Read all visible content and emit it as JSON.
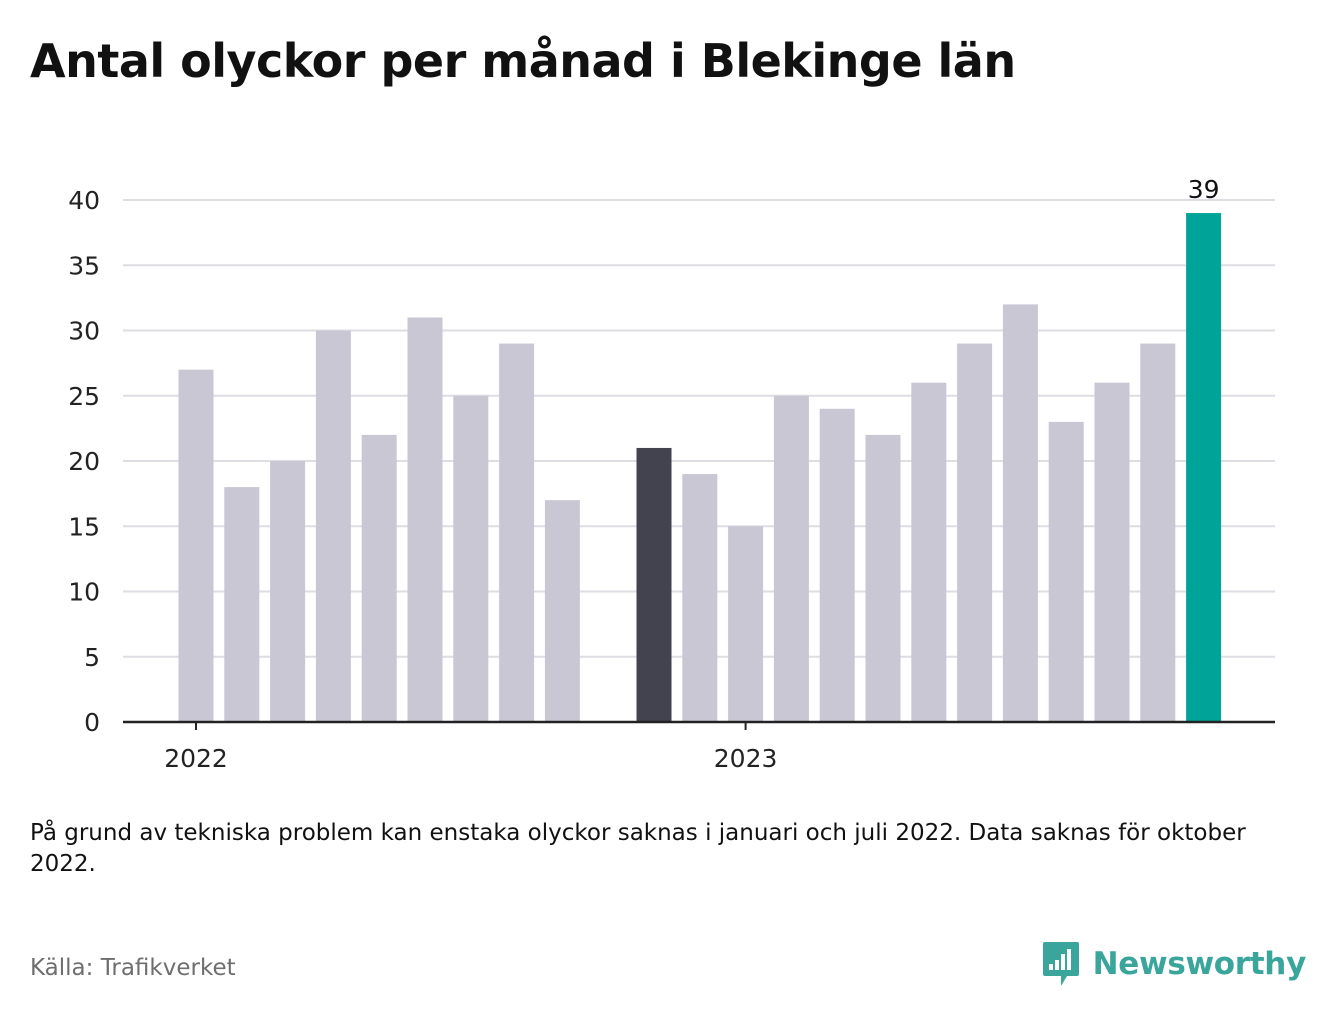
{
  "title": "Antal olyckor per månad i Blekinge län",
  "note": "På grund av tekniska problem kan enstaka olyckor saknas i januari och juli 2022. Data saknas för oktober 2022.",
  "source": "Källa: Trafikverket",
  "brand": {
    "name": "Newsworthy",
    "logo_icon": "bar-chart-speech-bubble-icon"
  },
  "colors": {
    "default_bar": "#c9c7d4",
    "highlight_bar": "#43424f",
    "latest_bar": "#00a398",
    "grid": "#dedde3",
    "axis": "#222222",
    "brand": "#3aa59b"
  },
  "chart_data": {
    "type": "bar",
    "title": "Antal olyckor per månad i Blekinge län",
    "xlabel": "",
    "ylabel": "",
    "ylim": [
      0,
      40
    ],
    "yticks": [
      0,
      5,
      10,
      15,
      20,
      25,
      30,
      35,
      40
    ],
    "grid": true,
    "x_tick_labels": [
      {
        "label": "2022",
        "category": "2022-01"
      },
      {
        "label": "2023",
        "category": "2023-01"
      }
    ],
    "categories": [
      "2022-01",
      "2022-02",
      "2022-03",
      "2022-04",
      "2022-05",
      "2022-06",
      "2022-07",
      "2022-08",
      "2022-09",
      "2022-10",
      "2022-11",
      "2022-12",
      "2023-01",
      "2023-02",
      "2023-03",
      "2023-04",
      "2023-05",
      "2023-06",
      "2023-07",
      "2023-08",
      "2023-09",
      "2023-10",
      "2023-11",
      "2023-12"
    ],
    "values": [
      27,
      18,
      20,
      30,
      22,
      31,
      25,
      29,
      17,
      null,
      21,
      19,
      15,
      25,
      24,
      22,
      26,
      29,
      32,
      23,
      26,
      29,
      39,
      null
    ],
    "highlight": {
      "category": "2022-11",
      "color_key": "highlight_bar"
    },
    "latest": {
      "category": "2023-11",
      "color_key": "latest_bar"
    },
    "data_labels": [
      {
        "category": "2023-11",
        "text": "39"
      }
    ]
  }
}
